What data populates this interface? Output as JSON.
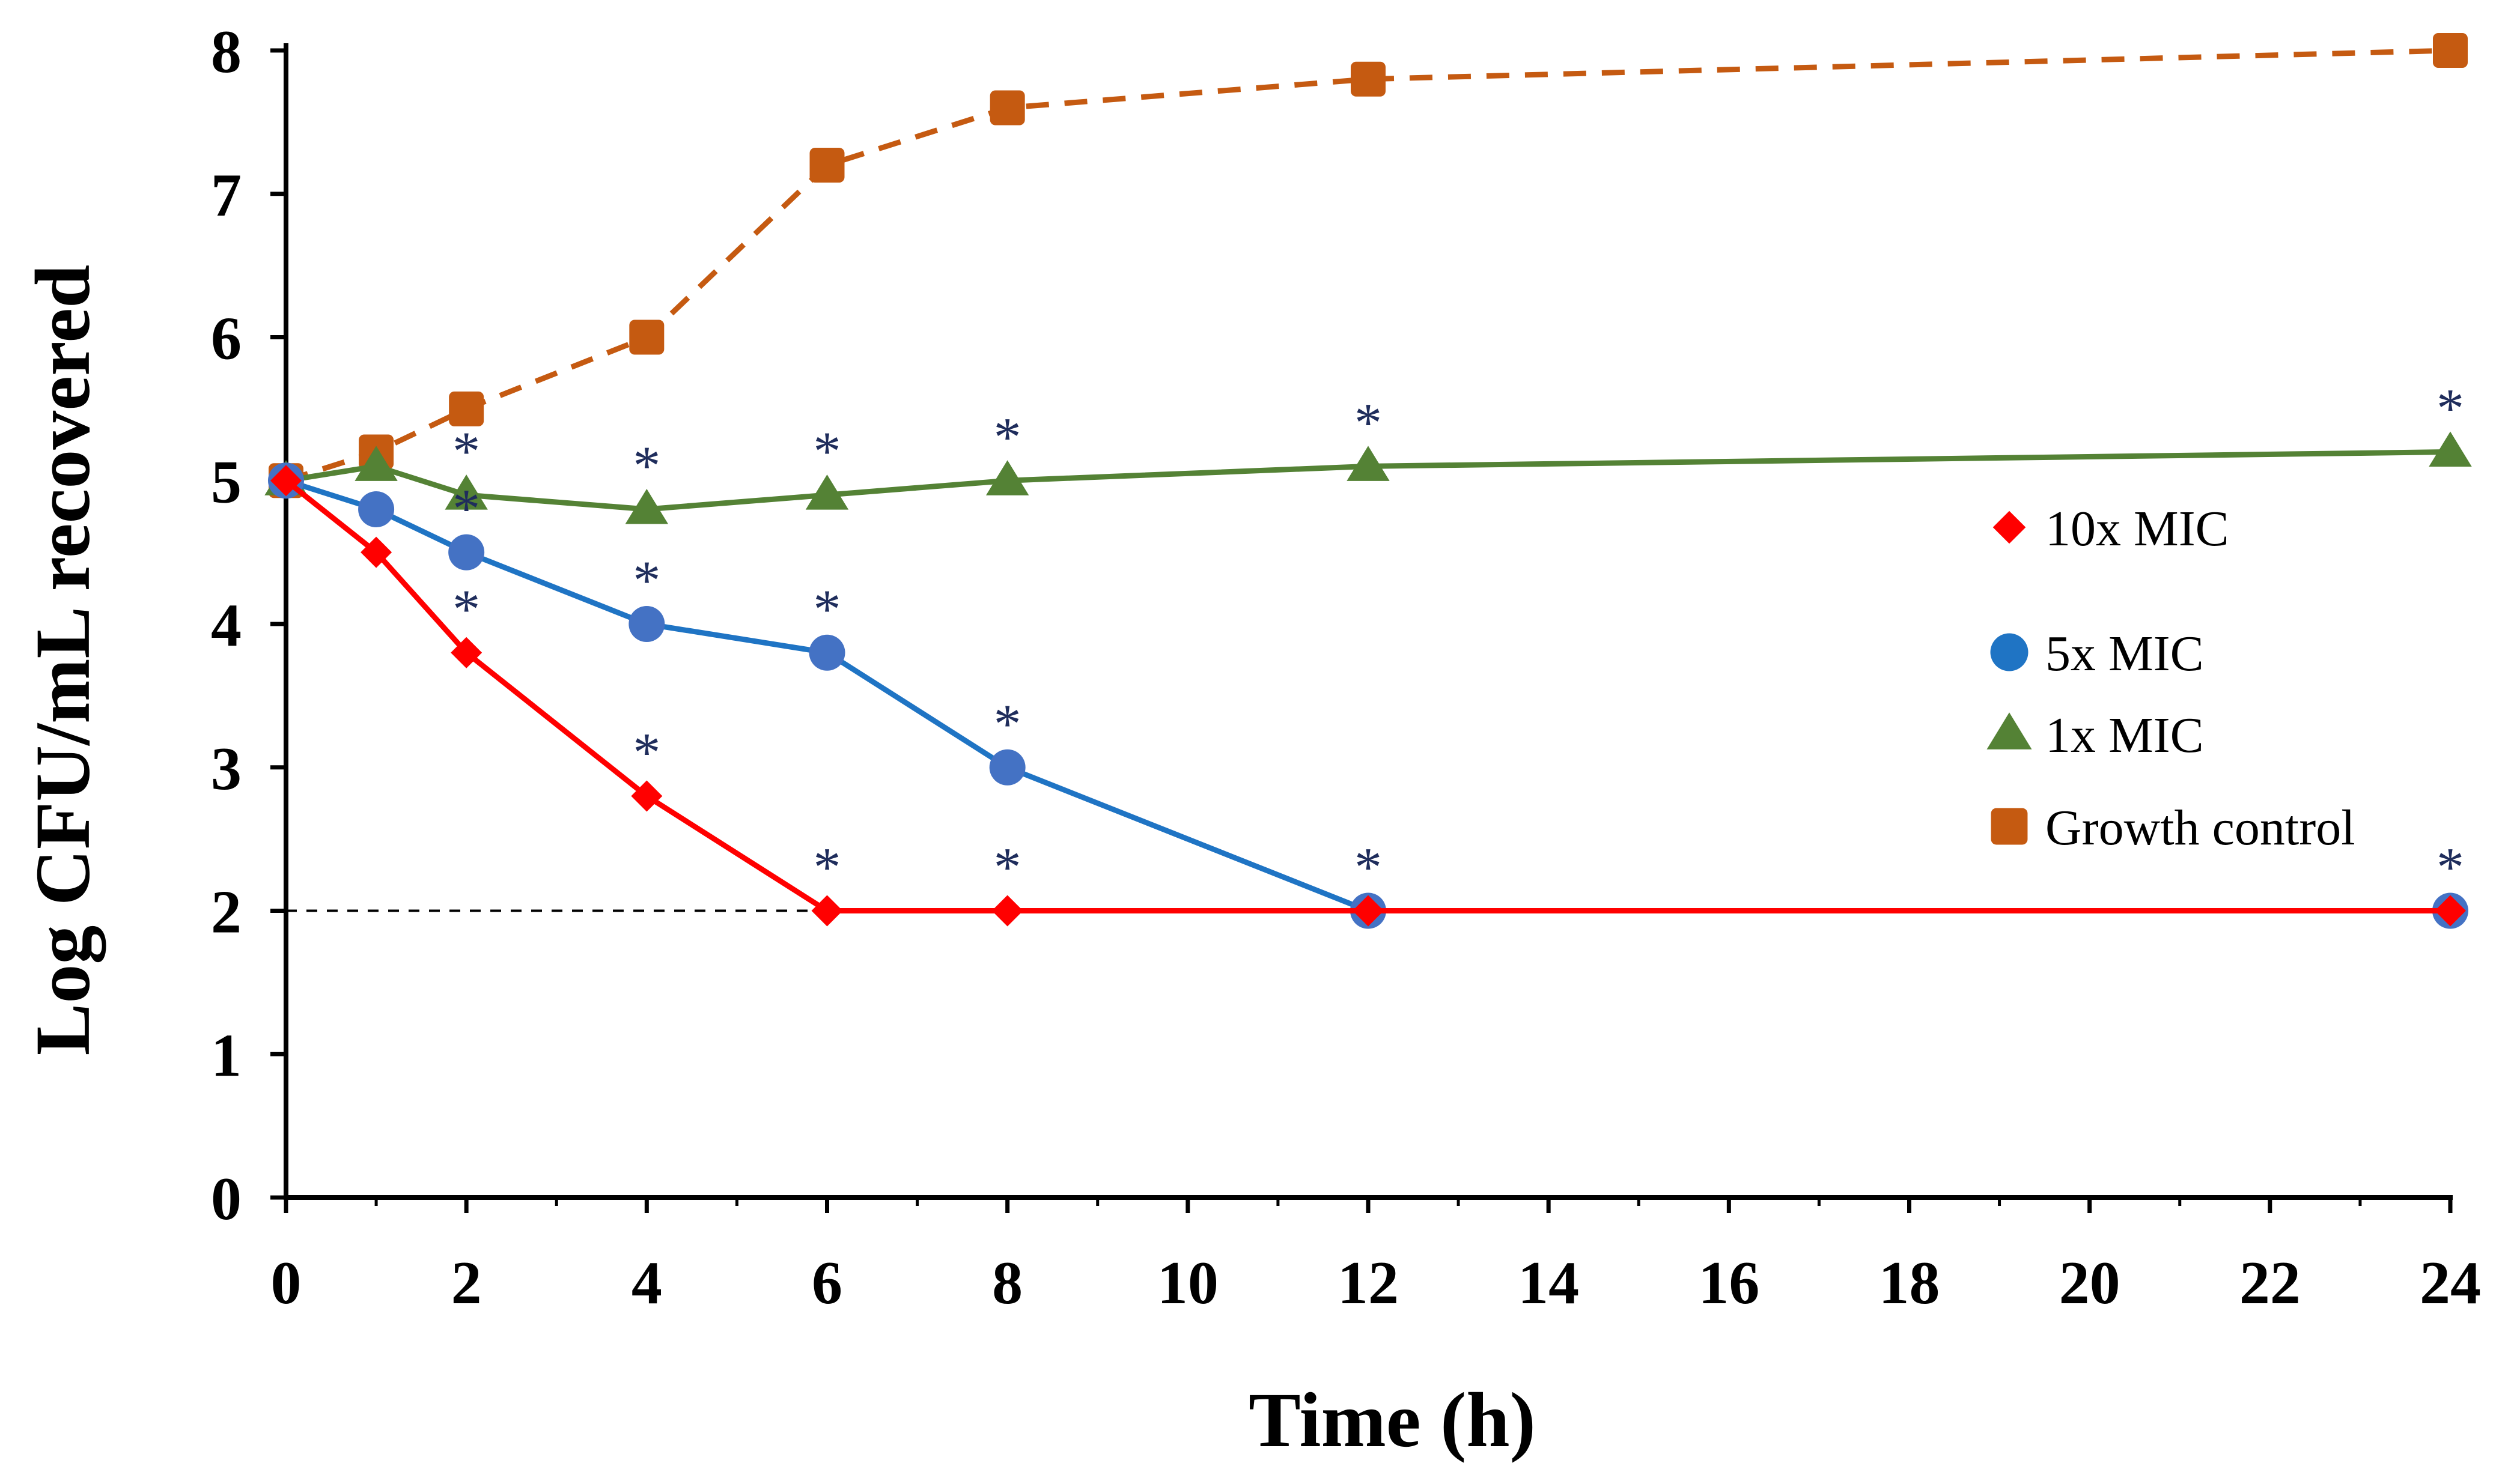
{
  "chart_data": {
    "type": "line",
    "xlabel": "Time (h)",
    "ylabel": "Log CFU/mL recovered",
    "xlim": [
      0,
      24
    ],
    "ylim": [
      0,
      8
    ],
    "x_ticks": [
      "0",
      "2",
      "4",
      "6",
      "8",
      "10",
      "12",
      "14",
      "16",
      "18",
      "20",
      "22",
      "24"
    ],
    "y_ticks": [
      "0",
      "1",
      "2",
      "3",
      "4",
      "5",
      "6",
      "7",
      "8"
    ],
    "detection_limit": 2,
    "legend_position": "right",
    "significance_marker": "*",
    "series": [
      {
        "name": "10x MIC",
        "color": "#ff0000",
        "marker": "diamond",
        "line_style": "solid",
        "x": [
          0,
          1,
          2,
          4,
          6,
          8,
          12,
          24
        ],
        "y": [
          5.0,
          4.5,
          3.8,
          2.8,
          2.0,
          2.0,
          2.0,
          2.0
        ],
        "significant": [
          false,
          false,
          true,
          true,
          true,
          true,
          false,
          false
        ]
      },
      {
        "name": "5x MIC",
        "color": "#1f74c4",
        "marker_color": "#4472c4",
        "marker": "circle",
        "line_style": "solid",
        "x": [
          0,
          1,
          2,
          4,
          6,
          8,
          12,
          24
        ],
        "y": [
          5.0,
          4.8,
          4.5,
          4.0,
          3.8,
          3.0,
          2.0,
          2.0
        ],
        "significant": [
          false,
          false,
          true,
          true,
          true,
          true,
          true,
          true
        ]
      },
      {
        "name": "1x MIC",
        "color": "#548235",
        "marker": "triangle",
        "line_style": "solid",
        "x": [
          0,
          1,
          2,
          4,
          6,
          8,
          12,
          24
        ],
        "y": [
          5.0,
          5.1,
          4.9,
          4.8,
          4.9,
          5.0,
          5.1,
          5.2
        ],
        "significant": [
          false,
          false,
          true,
          true,
          true,
          true,
          true,
          true
        ]
      },
      {
        "name": "Growth control",
        "color": "#c55a11",
        "marker": "square",
        "line_style": "dashed",
        "x": [
          0,
          1,
          2,
          4,
          6,
          8,
          12,
          24
        ],
        "y": [
          5.0,
          5.2,
          5.5,
          6.0,
          7.2,
          7.6,
          7.8,
          8.0
        ],
        "significant": [
          false,
          false,
          false,
          false,
          false,
          false,
          false,
          false
        ]
      }
    ]
  }
}
